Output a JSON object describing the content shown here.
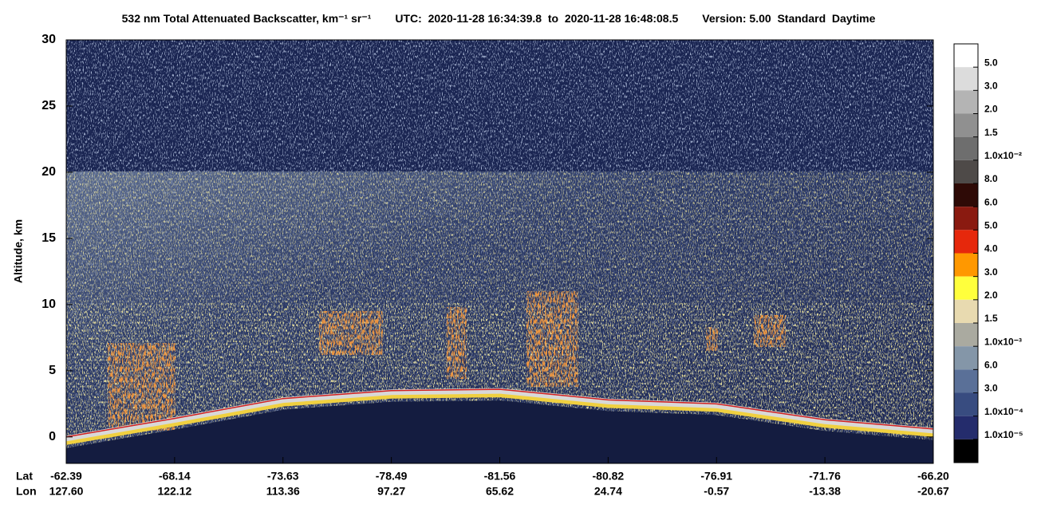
{
  "chart_data": {
    "type": "curtain",
    "title": "532 nm Total Attenuated Backscatter, km⁻¹ sr⁻¹",
    "utc": "UTC:  2020-11-28 16:34:39.8  to  2020-11-28 16:48:08.5",
    "version": "Version: 5.00  Standard  Daytime",
    "y_label": "Altitude, km",
    "ylim": [
      -2,
      30
    ],
    "yticks": [
      0,
      5,
      10,
      15,
      20,
      25,
      30
    ],
    "row_labels": [
      "Lat",
      "Lon"
    ],
    "lat": [
      "-62.39",
      "-68.14",
      "-73.63",
      "-78.49",
      "-81.56",
      "-80.82",
      "-76.91",
      "-71.76",
      "-66.20"
    ],
    "lon": [
      "127.60",
      "122.12",
      "113.36",
      "97.27",
      "65.62",
      "24.74",
      "-0.57",
      "-13.38",
      "-20.67"
    ],
    "surface": [
      0.0,
      1.4,
      2.9,
      3.5,
      3.6,
      2.8,
      2.5,
      1.3,
      0.6
    ],
    "surface_color": "#d02020",
    "colorbar": {
      "colors": [
        "#ffffff",
        "#dcdcdc",
        "#b4b4b4",
        "#909090",
        "#6e6e6e",
        "#4e4a48",
        "#2e0a06",
        "#8a1a10",
        "#e6280c",
        "#ff9800",
        "#ffff3c",
        "#e8dab0",
        "#aaaaa0",
        "#8496a8",
        "#5a7098",
        "#384c80",
        "#242c6c",
        "#000000"
      ],
      "labels": [
        "5.0",
        "3.0",
        "2.0",
        "1.5",
        "1.0x10⁻²",
        "8.0",
        "6.0",
        "5.0",
        "4.0",
        "3.0",
        "2.0",
        "1.5",
        "1.0x10⁻³",
        "6.0",
        "3.0",
        "1.0x10⁻⁴",
        "1.0x10⁻⁵"
      ]
    }
  }
}
